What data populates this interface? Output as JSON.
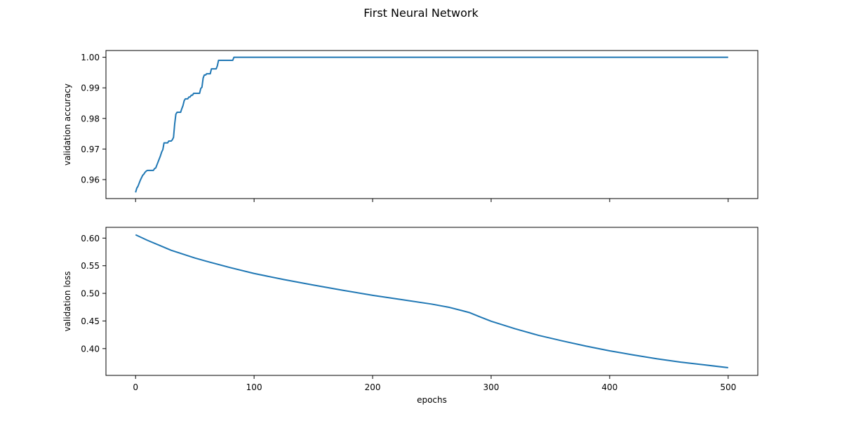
{
  "figure": {
    "suptitle": "First Neural Network",
    "line_color": "#1f77b4"
  },
  "chart_data": [
    {
      "type": "line",
      "title": "",
      "xlabel": "",
      "ylabel": "validation accuracy",
      "xlim": [
        -25,
        525
      ],
      "ylim": [
        0.9538,
        1.0022
      ],
      "xticks": [
        0,
        100,
        200,
        300,
        400,
        500
      ],
      "xtick_labels_shown": false,
      "yticks": [
        0.96,
        0.97,
        0.98,
        0.99,
        1.0
      ],
      "ytick_labels": [
        "0.96",
        "0.97",
        "0.98",
        "0.99",
        "1.00"
      ],
      "grid": false,
      "series": [
        {
          "x": [
            0,
            1,
            2,
            3,
            4,
            5,
            6,
            7,
            8,
            9,
            10,
            11,
            12,
            13,
            14,
            15,
            16,
            17,
            18,
            19,
            20,
            21,
            22,
            23,
            24,
            25,
            26,
            27,
            28,
            29,
            30,
            31,
            32,
            33,
            34,
            35,
            36,
            37,
            38,
            39,
            40,
            41,
            42,
            43,
            44,
            45,
            46,
            47,
            48,
            49,
            50,
            51,
            52,
            53,
            54,
            55,
            56,
            57,
            58,
            59,
            60,
            61,
            62,
            63,
            64,
            65,
            66,
            67,
            68,
            69,
            70,
            71,
            72,
            73,
            74,
            75,
            76,
            77,
            78,
            79,
            80,
            81,
            82,
            83,
            84,
            85,
            100,
            150,
            200,
            250,
            300,
            350,
            400,
            450,
            500
          ],
          "y": [
            0.9558,
            0.9572,
            0.9578,
            0.9588,
            0.9598,
            0.9606,
            0.9614,
            0.9618,
            0.9624,
            0.9628,
            0.963,
            0.963,
            0.963,
            0.963,
            0.963,
            0.963,
            0.9636,
            0.9638,
            0.9648,
            0.9658,
            0.9668,
            0.9678,
            0.969,
            0.9698,
            0.972,
            0.972,
            0.972,
            0.972,
            0.9726,
            0.9726,
            0.9726,
            0.973,
            0.9738,
            0.9782,
            0.9814,
            0.982,
            0.982,
            0.982,
            0.982,
            0.9832,
            0.9842,
            0.9858,
            0.9864,
            0.9864,
            0.9864,
            0.987,
            0.987,
            0.9876,
            0.9876,
            0.9882,
            0.9882,
            0.9882,
            0.9882,
            0.9882,
            0.9882,
            0.9898,
            0.9902,
            0.9932,
            0.9942,
            0.9942,
            0.9946,
            0.9946,
            0.9946,
            0.9946,
            0.9962,
            0.9962,
            0.9962,
            0.9962,
            0.9962,
            0.9972,
            0.999,
            0.999,
            0.999,
            0.999,
            0.999,
            0.999,
            0.999,
            0.999,
            0.999,
            0.999,
            0.999,
            0.999,
            0.999,
            1.0,
            1.0,
            1.0,
            1.0,
            1.0,
            1.0,
            1.0,
            1.0,
            1.0,
            1.0,
            1.0,
            1.0
          ]
        }
      ]
    },
    {
      "type": "line",
      "title": "",
      "xlabel": "epochs",
      "ylabel": "validation loss",
      "xlim": [
        -25,
        525
      ],
      "ylim": [
        0.3515,
        0.6195
      ],
      "xticks": [
        0,
        100,
        200,
        300,
        400,
        500
      ],
      "xtick_labels": [
        "0",
        "100",
        "200",
        "300",
        "400",
        "500"
      ],
      "yticks": [
        0.4,
        0.45,
        0.5,
        0.55,
        0.6
      ],
      "ytick_labels": [
        "0.40",
        "0.45",
        "0.50",
        "0.55",
        "0.60"
      ],
      "grid": false,
      "series": [
        {
          "x": [
            0,
            10,
            20,
            30,
            40,
            50,
            60,
            80,
            100,
            125,
            150,
            175,
            200,
            225,
            250,
            265,
            275,
            282,
            290,
            300,
            320,
            340,
            360,
            380,
            400,
            420,
            440,
            460,
            480,
            500
          ],
          "y": [
            0.606,
            0.596,
            0.587,
            0.578,
            0.571,
            0.564,
            0.558,
            0.5465,
            0.536,
            0.525,
            0.515,
            0.5055,
            0.4965,
            0.4885,
            0.4805,
            0.4745,
            0.469,
            0.465,
            0.458,
            0.4495,
            0.436,
            0.424,
            0.414,
            0.4045,
            0.396,
            0.3885,
            0.3815,
            0.3755,
            0.3705,
            0.3655
          ]
        }
      ]
    }
  ]
}
